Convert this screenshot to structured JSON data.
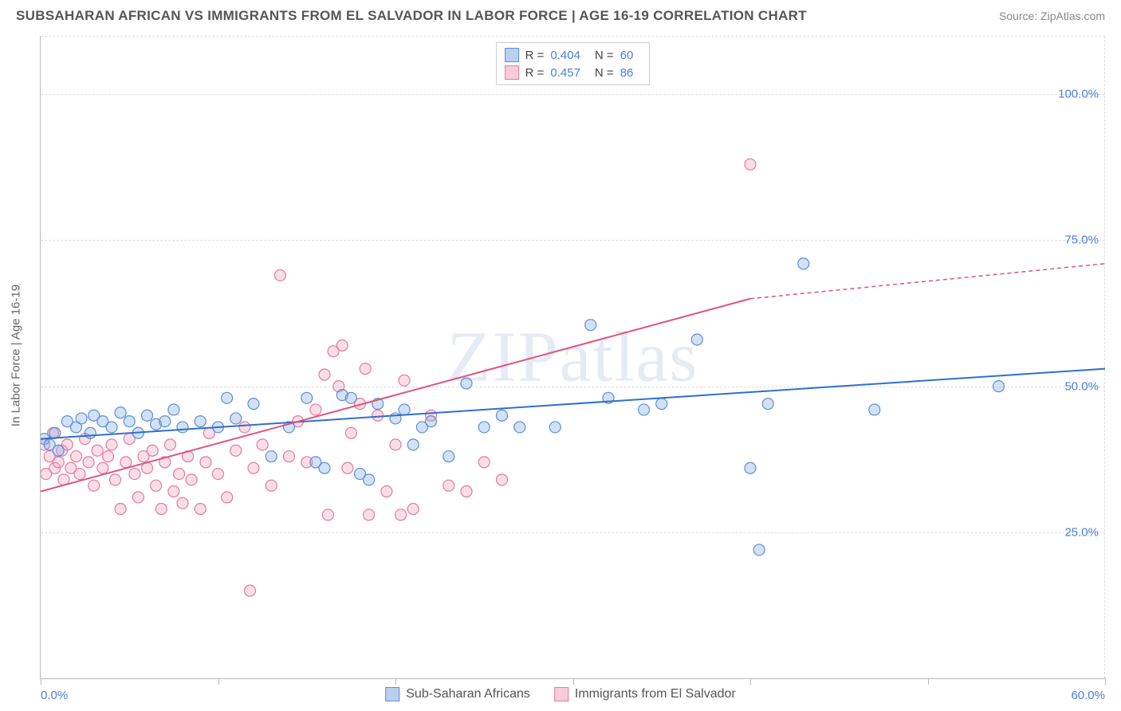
{
  "title": "SUBSAHARAN AFRICAN VS IMMIGRANTS FROM EL SALVADOR IN LABOR FORCE | AGE 16-19 CORRELATION CHART",
  "source": "Source: ZipAtlas.com",
  "watermark": "ZIPatlas",
  "y_axis_title": "In Labor Force | Age 16-19",
  "chart": {
    "type": "scatter",
    "xlim": [
      0,
      60
    ],
    "ylim": [
      0,
      110
    ],
    "x_ticks": [
      0,
      10,
      20,
      30,
      40,
      50,
      60
    ],
    "x_tick_labels": {
      "0": "0.0%",
      "60": "60.0%"
    },
    "y_grid": [
      25,
      50,
      75,
      100
    ],
    "y_tick_labels": {
      "25": "25.0%",
      "50": "50.0%",
      "75": "75.0%",
      "100": "100.0%"
    },
    "background_color": "#ffffff",
    "grid_color": "#dddddd",
    "border_color": "#bbbbbb",
    "marker_radius": 7,
    "marker_stroke_width": 1.2,
    "line_width": 2,
    "series": [
      {
        "name": "Sub-Saharan Africans",
        "color_fill": "rgba(130,170,225,0.35)",
        "color_stroke": "#5b8fd6",
        "line_color": "#2e6fd0",
        "r_value": "0.404",
        "n_value": "60",
        "trend": {
          "x1": 0,
          "y1": 41,
          "x2": 60,
          "y2": 53
        },
        "points": [
          [
            0.2,
            41
          ],
          [
            0.5,
            40
          ],
          [
            0.8,
            42
          ],
          [
            1,
            39
          ],
          [
            1.5,
            44
          ],
          [
            2,
            43
          ],
          [
            2.3,
            44.5
          ],
          [
            2.8,
            42
          ],
          [
            3,
            45
          ],
          [
            3.5,
            44
          ],
          [
            4,
            43
          ],
          [
            4.5,
            45.5
          ],
          [
            5,
            44
          ],
          [
            5.5,
            42
          ],
          [
            6,
            45
          ],
          [
            6.5,
            43.5
          ],
          [
            7,
            44
          ],
          [
            7.5,
            46
          ],
          [
            8,
            43
          ],
          [
            9,
            44
          ],
          [
            10,
            43
          ],
          [
            10.5,
            48
          ],
          [
            11,
            44.5
          ],
          [
            12,
            47
          ],
          [
            13,
            38
          ],
          [
            14,
            43
          ],
          [
            15,
            48
          ],
          [
            15.5,
            37
          ],
          [
            16,
            36
          ],
          [
            17,
            48.5
          ],
          [
            17.5,
            48
          ],
          [
            18,
            35
          ],
          [
            18.5,
            34
          ],
          [
            19,
            47
          ],
          [
            20,
            44.5
          ],
          [
            20.5,
            46
          ],
          [
            21,
            40
          ],
          [
            21.5,
            43
          ],
          [
            22,
            44
          ],
          [
            23,
            38
          ],
          [
            24,
            50.5
          ],
          [
            25,
            43
          ],
          [
            26,
            45
          ],
          [
            27,
            43
          ],
          [
            29,
            43
          ],
          [
            31,
            60.5
          ],
          [
            32,
            48
          ],
          [
            34,
            46
          ],
          [
            35,
            47
          ],
          [
            37,
            58
          ],
          [
            40,
            36
          ],
          [
            40.5,
            22
          ],
          [
            41,
            47
          ],
          [
            43,
            71
          ],
          [
            47,
            46
          ],
          [
            54,
            50
          ]
        ]
      },
      {
        "name": "Immigrants from El Salvador",
        "color_fill": "rgba(240,160,185,0.35)",
        "color_stroke": "#e47a9d",
        "line_color": "#e0517d",
        "r_value": "0.457",
        "n_value": "86",
        "trend": {
          "x1": 0,
          "y1": 32,
          "x2": 40,
          "y2": 65
        },
        "trend_extend": {
          "x1": 40,
          "y1": 65,
          "x2": 60,
          "y2": 71
        },
        "points": [
          [
            0.2,
            40
          ],
          [
            0.3,
            35
          ],
          [
            0.5,
            38
          ],
          [
            0.7,
            42
          ],
          [
            0.8,
            36
          ],
          [
            1,
            37
          ],
          [
            1.2,
            39
          ],
          [
            1.3,
            34
          ],
          [
            1.5,
            40
          ],
          [
            1.7,
            36
          ],
          [
            2,
            38
          ],
          [
            2.2,
            35
          ],
          [
            2.5,
            41
          ],
          [
            2.7,
            37
          ],
          [
            3,
            33
          ],
          [
            3.2,
            39
          ],
          [
            3.5,
            36
          ],
          [
            3.8,
            38
          ],
          [
            4,
            40
          ],
          [
            4.2,
            34
          ],
          [
            4.5,
            29
          ],
          [
            4.8,
            37
          ],
          [
            5,
            41
          ],
          [
            5.3,
            35
          ],
          [
            5.5,
            31
          ],
          [
            5.8,
            38
          ],
          [
            6,
            36
          ],
          [
            6.3,
            39
          ],
          [
            6.5,
            33
          ],
          [
            6.8,
            29
          ],
          [
            7,
            37
          ],
          [
            7.3,
            40
          ],
          [
            7.5,
            32
          ],
          [
            7.8,
            35
          ],
          [
            8,
            30
          ],
          [
            8.3,
            38
          ],
          [
            8.5,
            34
          ],
          [
            9,
            29
          ],
          [
            9.3,
            37
          ],
          [
            9.5,
            42
          ],
          [
            10,
            35
          ],
          [
            10.5,
            31
          ],
          [
            11,
            39
          ],
          [
            11.5,
            43
          ],
          [
            11.8,
            15
          ],
          [
            12,
            36
          ],
          [
            12.5,
            40
          ],
          [
            13,
            33
          ],
          [
            13.5,
            69
          ],
          [
            14,
            38
          ],
          [
            14.5,
            44
          ],
          [
            15,
            37
          ],
          [
            15.5,
            46
          ],
          [
            16,
            52
          ],
          [
            16.2,
            28
          ],
          [
            16.5,
            56
          ],
          [
            16.8,
            50
          ],
          [
            17,
            57
          ],
          [
            17.3,
            36
          ],
          [
            17.5,
            42
          ],
          [
            18,
            47
          ],
          [
            18.3,
            53
          ],
          [
            18.5,
            28
          ],
          [
            19,
            45
          ],
          [
            19.5,
            32
          ],
          [
            20,
            40
          ],
          [
            20.3,
            28
          ],
          [
            20.5,
            51
          ],
          [
            21,
            29
          ],
          [
            22,
            45
          ],
          [
            23,
            33
          ],
          [
            24,
            32
          ],
          [
            25,
            37
          ],
          [
            26,
            34
          ],
          [
            40,
            88
          ]
        ]
      }
    ]
  },
  "legend_bottom": [
    {
      "label": "Sub-Saharan Africans",
      "fill": "rgba(130,170,225,0.55)",
      "stroke": "#5b8fd6"
    },
    {
      "label": "Immigrants from El Salvador",
      "fill": "rgba(240,160,185,0.55)",
      "stroke": "#e47a9d"
    }
  ]
}
